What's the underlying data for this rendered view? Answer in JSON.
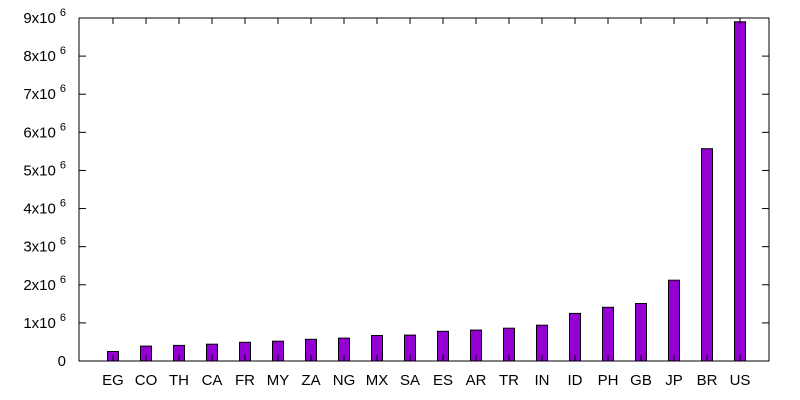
{
  "chart_data": {
    "type": "bar",
    "title": "",
    "xlabel": "",
    "ylabel": "",
    "categories": [
      "EG",
      "CO",
      "TH",
      "CA",
      "FR",
      "MY",
      "ZA",
      "NG",
      "MX",
      "SA",
      "ES",
      "AR",
      "TR",
      "IN",
      "ID",
      "PH",
      "GB",
      "JP",
      "BR",
      "US"
    ],
    "values": [
      250000,
      390000,
      410000,
      440000,
      490000,
      520000,
      570000,
      600000,
      670000,
      680000,
      780000,
      810000,
      860000,
      940000,
      1250000,
      1410000,
      1510000,
      2120000,
      5570000,
      8900000
    ],
    "ylim": [
      0,
      9000000
    ],
    "yticks": [
      {
        "value": 0,
        "base": "0",
        "exp": ""
      },
      {
        "value": 1000000,
        "base": "1x10",
        "exp": "6"
      },
      {
        "value": 2000000,
        "base": "2x10",
        "exp": "6"
      },
      {
        "value": 3000000,
        "base": "3x10",
        "exp": "6"
      },
      {
        "value": 4000000,
        "base": "4x10",
        "exp": "6"
      },
      {
        "value": 5000000,
        "base": "5x10",
        "exp": "6"
      },
      {
        "value": 6000000,
        "base": "6x10",
        "exp": "6"
      },
      {
        "value": 7000000,
        "base": "7x10",
        "exp": "6"
      },
      {
        "value": 8000000,
        "base": "8x10",
        "exp": "6"
      },
      {
        "value": 9000000,
        "base": "9x10",
        "exp": "6"
      }
    ],
    "grid": false,
    "legend": "none",
    "colors": {
      "bar": "#9400d3",
      "axis": "#000000"
    }
  }
}
